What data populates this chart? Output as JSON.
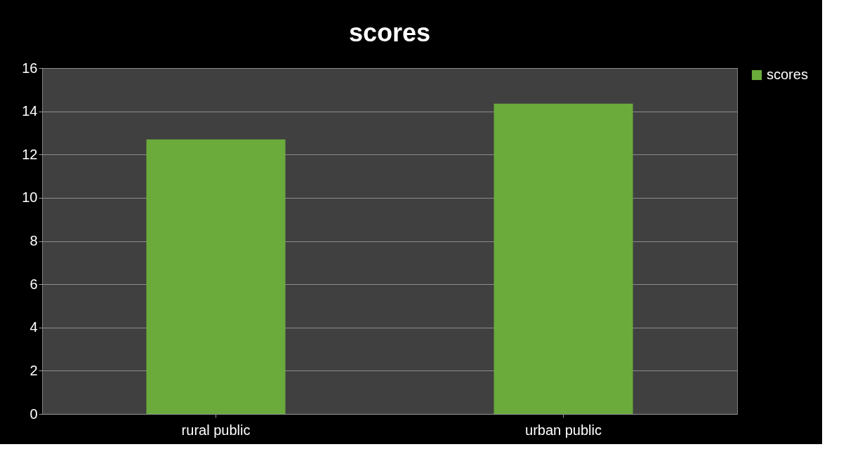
{
  "chart_data": {
    "type": "bar",
    "title": "scores",
    "categories": [
      "rural public",
      "urban public"
    ],
    "series": [
      {
        "name": "scores",
        "color": "#6aab3c",
        "values": [
          12.7,
          14.35
        ]
      }
    ],
    "ylim": [
      0,
      16
    ],
    "yticks": [
      0,
      2,
      4,
      6,
      8,
      10,
      12,
      14,
      16
    ],
    "grid": "y",
    "legend": "right"
  }
}
